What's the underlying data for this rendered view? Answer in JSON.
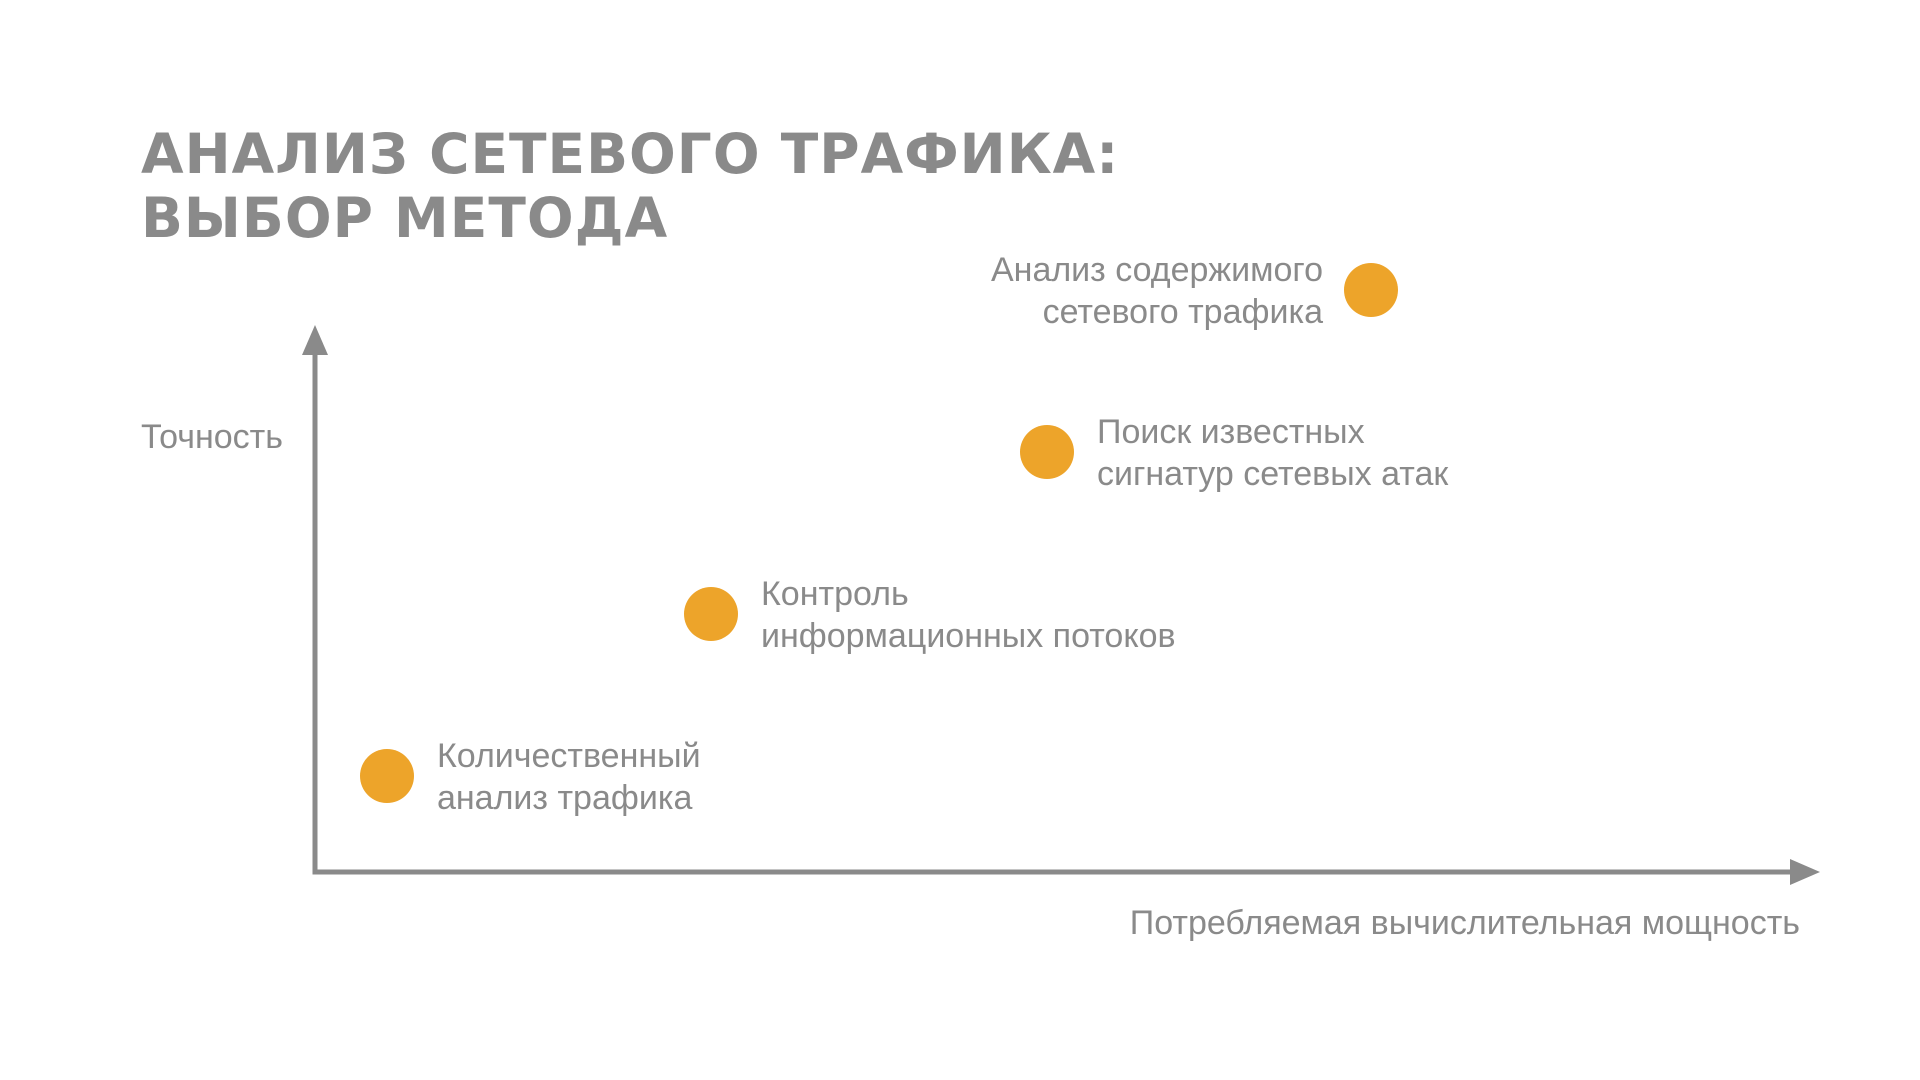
{
  "title_lines": [
    "АНАЛИЗ СЕТЕВОГО ТРАФИКА:",
    "ВЫБОР МЕТОДА"
  ],
  "colors": {
    "axis": "#8a8a8a",
    "text": "#8a8a8a",
    "point": "#eda42a"
  },
  "chart_data": {
    "type": "scatter",
    "xlabel": "Потребляемая вычислительная мощность",
    "ylabel": "Точность",
    "x_ticks": false,
    "y_ticks": false,
    "grid": false,
    "xlim": [
      0,
      100
    ],
    "ylim": [
      0,
      100
    ],
    "points": [
      {
        "x": 6,
        "y": 16,
        "label_lines": [
          "Количественный",
          "анализ трафика"
        ],
        "label_side": "right"
      },
      {
        "x": 33,
        "y": 43,
        "label_lines": [
          "Контроль",
          "информационных потоков"
        ],
        "label_side": "right"
      },
      {
        "x": 61,
        "y": 70,
        "label_lines": [
          "Поиск известных",
          "сигнатур сетевых атак"
        ],
        "label_side": "right"
      },
      {
        "x": 88,
        "y": 97,
        "label_lines": [
          "Анализ содержимого",
          "сетевого трафика"
        ],
        "label_side": "left"
      }
    ]
  }
}
